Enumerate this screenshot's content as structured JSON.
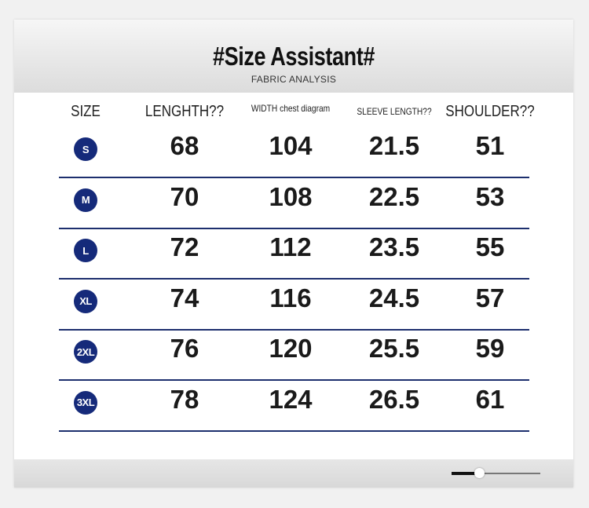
{
  "header": {
    "title": "#Size Assistant#",
    "subtitle": "FABRIC ANALYSIS"
  },
  "table": {
    "columns": [
      "SIZE",
      "LENGHTH??",
      "WIDTH chest diagram",
      "SLEEVE LENGTH??",
      "SHOULDER??"
    ],
    "rows": [
      [
        "S",
        "68",
        "104",
        "21.5",
        "51"
      ],
      [
        "M",
        "70",
        "108",
        "22.5",
        "53"
      ],
      [
        "L",
        "72",
        "112",
        "23.5",
        "55"
      ],
      [
        "XL",
        "74",
        "116",
        "24.5",
        "57"
      ],
      [
        "2XL",
        "76",
        "120",
        "25.5",
        "59"
      ],
      [
        "3XL",
        "78",
        "124",
        "26.5",
        "61"
      ]
    ]
  }
}
